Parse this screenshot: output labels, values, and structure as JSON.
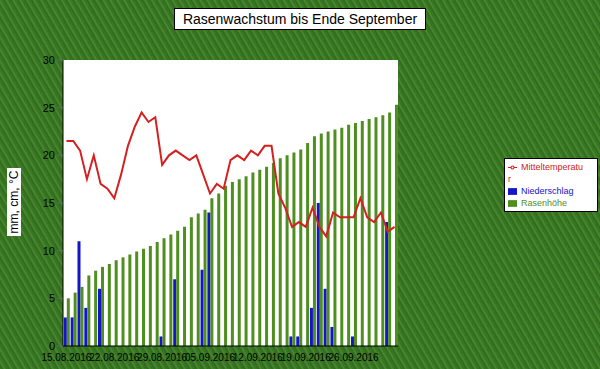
{
  "chart_data": {
    "type": "bar",
    "title": "Rasenwachstum bis Ende September",
    "y_label": "mm, cm, °C",
    "categories": [
      "15.08.2016",
      null,
      null,
      null,
      null,
      null,
      null,
      "22.08.2016",
      null,
      null,
      null,
      null,
      null,
      null,
      "29.08.2016",
      null,
      null,
      null,
      null,
      null,
      null,
      "05.09.2016",
      null,
      null,
      null,
      null,
      null,
      null,
      "12.09.2016",
      null,
      null,
      null,
      null,
      null,
      null,
      "19.09.2016",
      null,
      null,
      null,
      null,
      null,
      null,
      "26.09.2016",
      null,
      null,
      null,
      null,
      null,
      null
    ],
    "series": [
      {
        "name": "Niederschlag",
        "type": "bar",
        "color": "#1414c8",
        "values": [
          3,
          3,
          11,
          4,
          0,
          6,
          0,
          0,
          0,
          0,
          0,
          0,
          0,
          0,
          1,
          0,
          7,
          0,
          0,
          0,
          8,
          14,
          0,
          0,
          0,
          0,
          0,
          0,
          0,
          0,
          0,
          0,
          0,
          1,
          1,
          0,
          4,
          15,
          6,
          2,
          0,
          0,
          1,
          0,
          0,
          0,
          0,
          13,
          0
        ]
      },
      {
        "name": "Rasenhöhe",
        "type": "bar",
        "color": "#4f8f1f",
        "values": [
          5.0,
          5.6,
          6.2,
          7.4,
          7.9,
          8.3,
          8.6,
          9.0,
          9.3,
          9.6,
          9.9,
          10.2,
          10.5,
          10.9,
          11.3,
          11.7,
          12.1,
          12.5,
          13.5,
          13.9,
          14.3,
          15.5,
          16.0,
          16.8,
          17.2,
          17.5,
          17.8,
          18.2,
          18.5,
          18.8,
          19.2,
          19.7,
          20.0,
          20.3,
          20.6,
          21.3,
          22.0,
          22.3,
          22.5,
          22.7,
          22.9,
          23.2,
          23.4,
          23.6,
          23.8,
          24.0,
          24.2,
          24.5,
          25.3
        ]
      },
      {
        "name": "Mitteltemperatur",
        "type": "line",
        "color": "#d42020",
        "values": [
          21.5,
          21.5,
          20.5,
          17.5,
          20,
          17,
          16.5,
          15.5,
          18,
          21,
          23,
          24.5,
          23.5,
          24,
          19,
          20,
          20.5,
          20,
          19.5,
          20,
          18,
          16,
          17,
          16.5,
          19.5,
          20,
          19.5,
          20.5,
          20,
          21,
          21,
          16,
          14.5,
          12.5,
          13,
          12.5,
          14.5,
          12.5,
          11.5,
          14,
          13.5,
          13.5,
          13.5,
          15.5,
          13.5,
          13,
          14,
          12,
          12.5
        ]
      }
    ],
    "ylim": [
      0,
      30
    ],
    "yticks": [
      0,
      5,
      10,
      15,
      20,
      25,
      30
    ],
    "grid": false,
    "legend": "right"
  }
}
